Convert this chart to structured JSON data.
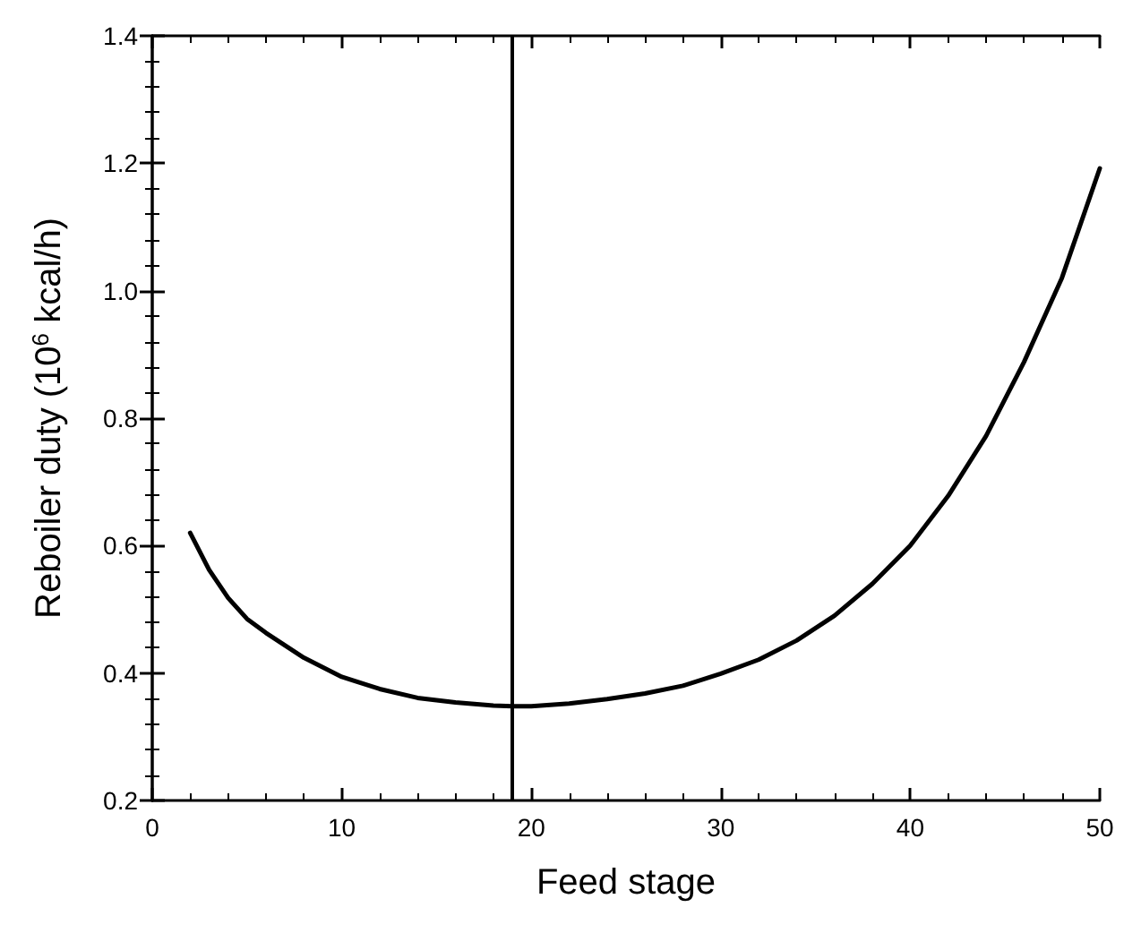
{
  "chart_data": {
    "type": "line",
    "xlabel": "Feed stage",
    "ylabel": "Reboiler duty (10$^{6}$ kcal/h)",
    "xlim": [
      0,
      50
    ],
    "xticks": [
      0,
      10,
      20,
      30,
      40,
      50
    ],
    "ylim": [
      0.2,
      1.4
    ],
    "yticks": [
      0.2,
      0.4,
      0.6,
      0.8,
      {
        "value": 1,
        "label": "1.0"
      },
      1.2,
      1.4
    ],
    "marker": "none",
    "line_style": "solid",
    "series": [
      {
        "color": "#000000",
        "x": [
          2,
          3,
          4,
          5,
          6,
          8,
          10,
          12,
          14,
          16,
          18,
          19,
          20,
          22,
          24,
          26,
          28,
          30,
          32,
          34,
          36,
          38,
          40,
          42,
          44,
          46,
          48,
          50
        ],
        "values": [
          0.62,
          0.562,
          0.518,
          0.485,
          0.463,
          0.424,
          0.394,
          0.375,
          0.361,
          0.354,
          0.349,
          0.348,
          0.348,
          0.352,
          0.359,
          0.368,
          0.38,
          0.399,
          0.421,
          0.451,
          0.49,
          0.54,
          0.6,
          0.678,
          0.772,
          0.888,
          1.02,
          1.192
        ]
      }
    ],
    "ref_lines": [
      {
        "axis": "x",
        "value": 19,
        "label": null,
        "color": "#000000",
        "line_style": "solid"
      }
    ]
  }
}
